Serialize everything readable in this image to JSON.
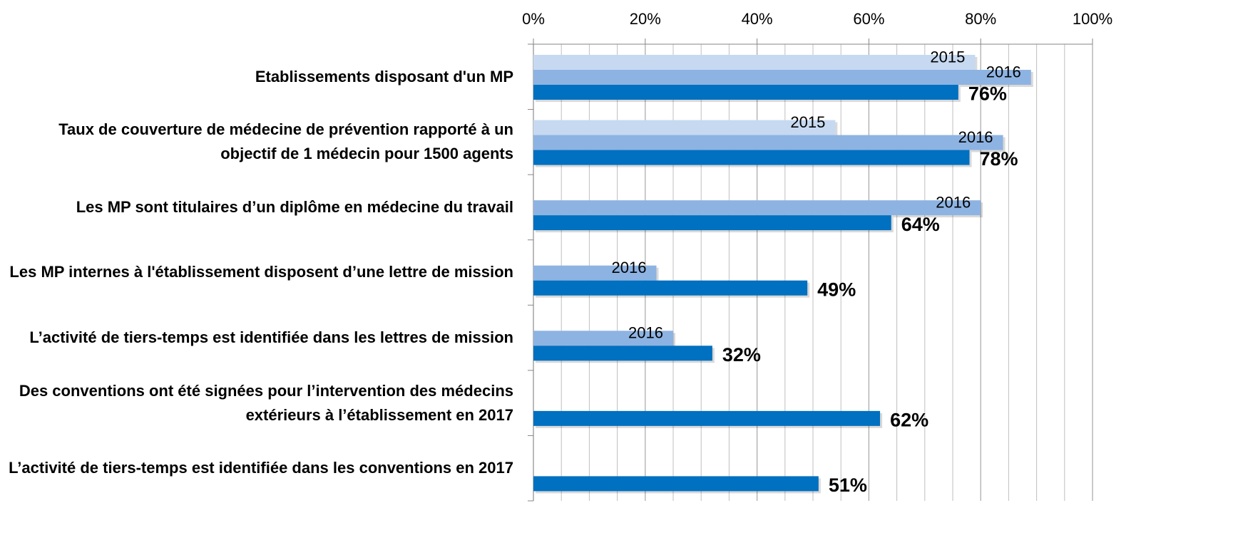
{
  "chart_data": {
    "type": "hbar",
    "categories": [
      "Etablissements disposant d'un MP",
      "Taux de couverture de médecine de prévention rapporté à un objectif de 1 médecin pour 1500 agents",
      "Les MP sont titulaires d’un diplôme en médecine du travail",
      "Les MP internes à l'établissement disposent d’une lettre de mission",
      "L’activité de tiers-temps est identifiée dans les lettres de mission",
      "Des conventions ont été signées pour l’intervention des médecins extérieurs à l’établissement en 2017",
      "L’activité de tiers-temps est identifiée dans les conventions en 2017"
    ],
    "series": [
      {
        "name": "2015",
        "color": "#c6d9f1",
        "values": [
          79,
          54,
          null,
          null,
          null,
          null,
          null
        ]
      },
      {
        "name": "2016",
        "color": "#8db3e2",
        "values": [
          89,
          84,
          80,
          22,
          25,
          null,
          null
        ]
      },
      {
        "color": "#0070c0",
        "values": [
          76,
          78,
          64,
          49,
          32,
          62,
          51
        ],
        "value_labels": [
          "76%",
          "78%",
          "64%",
          "49%",
          "32%",
          "62%",
          "51%"
        ]
      }
    ],
    "xlim": [
      0,
      100
    ],
    "xticks": [
      {
        "value": 0,
        "label": "0%"
      },
      {
        "value": 20,
        "label": "20%"
      },
      {
        "value": 40,
        "label": "40%"
      },
      {
        "value": 60,
        "label": "60%"
      },
      {
        "value": 80,
        "label": "80%"
      },
      {
        "value": 100,
        "label": "100%"
      }
    ],
    "xminorticks": [
      5,
      10,
      15,
      25,
      30,
      35,
      45,
      50,
      55,
      65,
      70,
      75,
      85,
      90,
      95
    ],
    "grid": true
  }
}
